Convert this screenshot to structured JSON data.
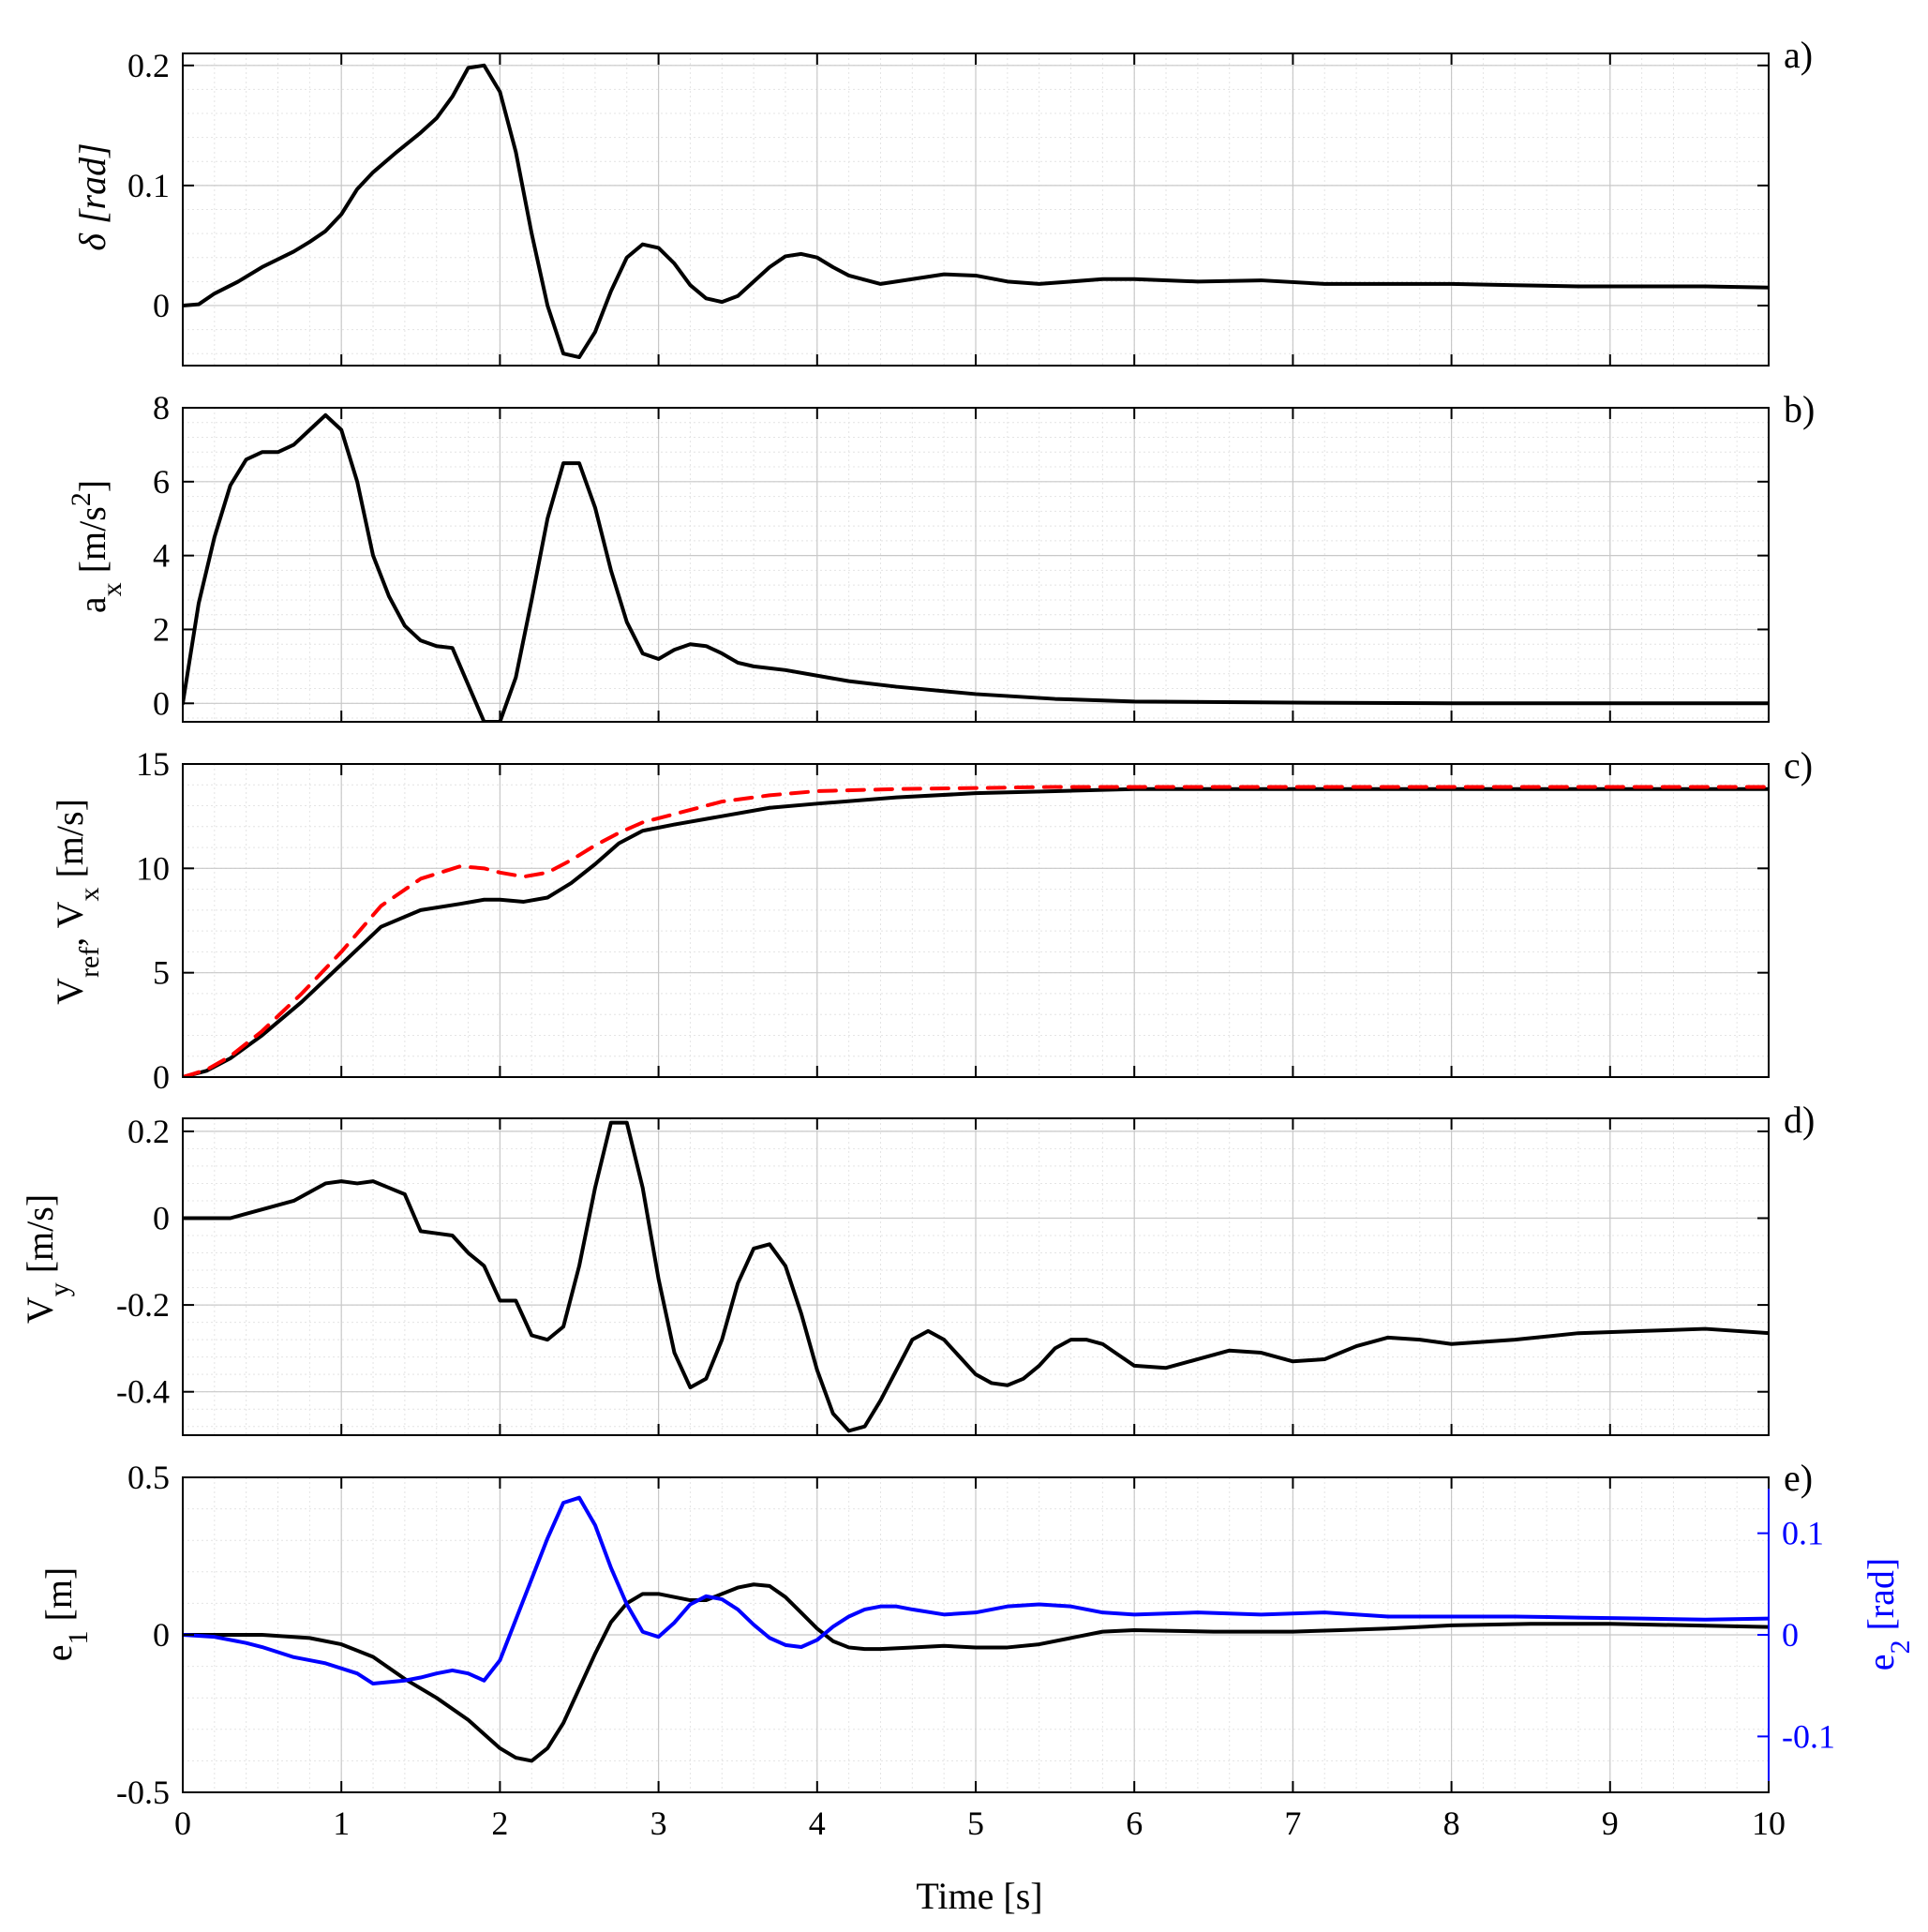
{
  "chart_data": [
    {
      "type": "line",
      "panel_label": "a)",
      "ylabel": "δ [rad]",
      "xlabel": "",
      "xlim": [
        0,
        10
      ],
      "ylim": [
        -0.05,
        0.21
      ],
      "yticks": [
        0,
        0.1,
        0.2
      ],
      "ytick_labels": [
        "0",
        "0.1",
        "0.2"
      ],
      "xticks": [
        0,
        1,
        2,
        3,
        4,
        5,
        6,
        7,
        8,
        9,
        10
      ],
      "grid": true,
      "series": [
        {
          "name": "delta",
          "color": "#000000",
          "dash": false,
          "x": [
            0,
            0.1,
            0.2,
            0.35,
            0.5,
            0.7,
            0.8,
            0.9,
            1.0,
            1.1,
            1.2,
            1.35,
            1.5,
            1.6,
            1.7,
            1.8,
            1.9,
            2.0,
            2.1,
            2.2,
            2.3,
            2.4,
            2.5,
            2.6,
            2.7,
            2.8,
            2.9,
            3.0,
            3.1,
            3.2,
            3.3,
            3.4,
            3.5,
            3.6,
            3.7,
            3.8,
            3.9,
            4.0,
            4.1,
            4.2,
            4.4,
            4.6,
            4.8,
            5.0,
            5.2,
            5.4,
            5.6,
            5.8,
            6.0,
            6.4,
            6.8,
            7.2,
            7.6,
            8.0,
            8.4,
            8.8,
            9.2,
            9.6,
            10.0
          ],
          "values": [
            0,
            0.001,
            0.01,
            0.02,
            0.032,
            0.045,
            0.053,
            0.062,
            0.076,
            0.097,
            0.111,
            0.128,
            0.144,
            0.156,
            0.174,
            0.198,
            0.2,
            0.178,
            0.128,
            0.06,
            0.0,
            -0.04,
            -0.043,
            -0.022,
            0.012,
            0.04,
            0.051,
            0.048,
            0.035,
            0.017,
            0.006,
            0.003,
            0.008,
            0.02,
            0.032,
            0.041,
            0.043,
            0.04,
            0.032,
            0.025,
            0.018,
            0.022,
            0.026,
            0.025,
            0.02,
            0.018,
            0.02,
            0.022,
            0.022,
            0.02,
            0.021,
            0.018,
            0.018,
            0.018,
            0.017,
            0.016,
            0.016,
            0.016,
            0.015
          ]
        }
      ]
    },
    {
      "type": "line",
      "panel_label": "b)",
      "ylabel": "a",
      "ylabel_sub": "x",
      "ylabel_tail": " [m/s",
      "ylabel_sup": "2",
      "ylabel_end": "]",
      "xlabel": "",
      "xlim": [
        0,
        10
      ],
      "ylim": [
        -0.5,
        8.0
      ],
      "yticks": [
        0,
        2,
        4,
        6,
        8
      ],
      "ytick_labels": [
        "0",
        "2",
        "4",
        "6",
        "8"
      ],
      "xticks": [
        0,
        1,
        2,
        3,
        4,
        5,
        6,
        7,
        8,
        9,
        10
      ],
      "grid": true,
      "series": [
        {
          "name": "ax",
          "color": "#000000",
          "dash": false,
          "x": [
            0,
            0.1,
            0.2,
            0.3,
            0.4,
            0.5,
            0.6,
            0.7,
            0.8,
            0.9,
            1.0,
            1.1,
            1.2,
            1.3,
            1.4,
            1.5,
            1.6,
            1.7,
            1.8,
            1.9,
            2.0,
            2.1,
            2.2,
            2.3,
            2.4,
            2.5,
            2.6,
            2.7,
            2.8,
            2.9,
            3.0,
            3.1,
            3.2,
            3.3,
            3.4,
            3.5,
            3.6,
            3.8,
            4.0,
            4.2,
            4.5,
            5.0,
            5.5,
            6.0,
            7.0,
            8.0,
            10.0
          ],
          "values": [
            0,
            2.7,
            4.5,
            5.9,
            6.6,
            6.8,
            6.8,
            7.0,
            7.4,
            7.8,
            7.4,
            6.0,
            4.0,
            2.9,
            2.1,
            1.7,
            1.55,
            1.5,
            0.5,
            -0.5,
            -0.5,
            0.7,
            2.8,
            5.0,
            6.5,
            6.5,
            5.3,
            3.6,
            2.2,
            1.35,
            1.2,
            1.45,
            1.6,
            1.55,
            1.35,
            1.1,
            1.0,
            0.9,
            0.75,
            0.6,
            0.45,
            0.25,
            0.12,
            0.05,
            0.02,
            0.0,
            0.0
          ]
        }
      ]
    },
    {
      "type": "line",
      "panel_label": "c)",
      "ylabel": "V",
      "ylabel_sub": "ref",
      "ylabel_tail": ", V",
      "ylabel_sub2": "x",
      "ylabel_end": " [m/s]",
      "xlabel": "",
      "xlim": [
        0,
        10
      ],
      "ylim": [
        0,
        15
      ],
      "yticks": [
        0,
        5,
        10,
        15
      ],
      "ytick_labels": [
        "0",
        "5",
        "10",
        "15"
      ],
      "xticks": [
        0,
        1,
        2,
        3,
        4,
        5,
        6,
        7,
        8,
        9,
        10
      ],
      "grid": true,
      "series": [
        {
          "name": "Vx",
          "color": "#000000",
          "dash": false,
          "x": [
            0,
            0.15,
            0.3,
            0.5,
            0.75,
            1.0,
            1.25,
            1.5,
            1.75,
            1.9,
            2.0,
            2.15,
            2.3,
            2.45,
            2.6,
            2.75,
            2.9,
            3.1,
            3.4,
            3.7,
            4.0,
            4.5,
            5.0,
            5.5,
            6.0,
            7.0,
            8.0,
            10.0
          ],
          "values": [
            0,
            0.3,
            0.9,
            2.0,
            3.6,
            5.4,
            7.2,
            8.0,
            8.3,
            8.5,
            8.5,
            8.4,
            8.6,
            9.3,
            10.2,
            11.2,
            11.8,
            12.1,
            12.5,
            12.9,
            13.1,
            13.4,
            13.6,
            13.7,
            13.8,
            13.8,
            13.8,
            13.8
          ]
        },
        {
          "name": "Vref",
          "color": "#ff0000",
          "dash": true,
          "x": [
            0,
            0.15,
            0.3,
            0.5,
            0.75,
            1.0,
            1.25,
            1.5,
            1.75,
            1.9,
            2.0,
            2.15,
            2.3,
            2.45,
            2.6,
            2.75,
            2.9,
            3.1,
            3.4,
            3.7,
            4.0,
            4.5,
            5.0,
            5.5,
            6.0,
            7.0,
            8.0,
            10.0
          ],
          "values": [
            0,
            0.35,
            1.0,
            2.2,
            4.0,
            6.0,
            8.2,
            9.5,
            10.1,
            10.0,
            9.8,
            9.6,
            9.8,
            10.4,
            11.1,
            11.7,
            12.2,
            12.6,
            13.2,
            13.5,
            13.7,
            13.8,
            13.85,
            13.9,
            13.9,
            13.9,
            13.9,
            13.9
          ]
        }
      ]
    },
    {
      "type": "line",
      "panel_label": "d)",
      "ylabel": "V",
      "ylabel_sub": "y",
      "ylabel_end": " [m/s]",
      "xlabel": "",
      "xlim": [
        0,
        10
      ],
      "ylim": [
        -0.5,
        0.23
      ],
      "yticks": [
        -0.4,
        -0.2,
        0,
        0.2
      ],
      "ytick_labels": [
        "-0.4",
        "-0.2",
        "0",
        "0.2"
      ],
      "xticks": [
        0,
        1,
        2,
        3,
        4,
        5,
        6,
        7,
        8,
        9,
        10
      ],
      "grid": true,
      "series": [
        {
          "name": "Vy",
          "color": "#000000",
          "dash": false,
          "x": [
            0,
            0.3,
            0.5,
            0.7,
            0.8,
            0.9,
            1.0,
            1.1,
            1.2,
            1.3,
            1.4,
            1.5,
            1.6,
            1.7,
            1.8,
            1.9,
            2.0,
            2.1,
            2.2,
            2.3,
            2.4,
            2.5,
            2.6,
            2.7,
            2.8,
            2.9,
            3.0,
            3.1,
            3.2,
            3.3,
            3.4,
            3.5,
            3.6,
            3.7,
            3.8,
            3.9,
            4.0,
            4.1,
            4.2,
            4.3,
            4.4,
            4.5,
            4.6,
            4.7,
            4.8,
            4.9,
            5.0,
            5.1,
            5.2,
            5.3,
            5.4,
            5.5,
            5.6,
            5.7,
            5.8,
            5.9,
            6.0,
            6.2,
            6.4,
            6.6,
            6.8,
            7.0,
            7.2,
            7.4,
            7.6,
            7.8,
            8.0,
            8.4,
            8.8,
            9.2,
            9.6,
            10.0
          ],
          "values": [
            0,
            0.0,
            0.02,
            0.04,
            0.06,
            0.08,
            0.085,
            0.08,
            0.085,
            0.07,
            0.055,
            -0.03,
            -0.035,
            -0.04,
            -0.08,
            -0.11,
            -0.19,
            -0.19,
            -0.27,
            -0.28,
            -0.25,
            -0.11,
            0.07,
            0.22,
            0.22,
            0.07,
            -0.14,
            -0.31,
            -0.39,
            -0.37,
            -0.28,
            -0.15,
            -0.07,
            -0.06,
            -0.11,
            -0.22,
            -0.35,
            -0.45,
            -0.49,
            -0.48,
            -0.42,
            -0.35,
            -0.28,
            -0.26,
            -0.28,
            -0.32,
            -0.36,
            -0.38,
            -0.385,
            -0.37,
            -0.34,
            -0.3,
            -0.28,
            -0.28,
            -0.29,
            -0.315,
            -0.34,
            -0.345,
            -0.325,
            -0.305,
            -0.31,
            -0.33,
            -0.325,
            -0.295,
            -0.275,
            -0.28,
            -0.29,
            -0.28,
            -0.265,
            -0.26,
            -0.255,
            -0.265
          ]
        }
      ]
    },
    {
      "type": "line",
      "panel_label": "e)",
      "ylabel": "e",
      "ylabel_sub": "1",
      "ylabel_end": " [m]",
      "y2label": "e",
      "y2label_sub": "2",
      "y2label_end": " [rad]",
      "y2color": "#0000ff",
      "xlabel": "Time [s]",
      "xlim": [
        0,
        10
      ],
      "ylim": [
        -0.5,
        0.5
      ],
      "yticks": [
        -0.5,
        0,
        0.5
      ],
      "ytick_labels": [
        "-0.5",
        "0",
        "0.5"
      ],
      "y2lim": [
        -0.155,
        0.155
      ],
      "y2ticks": [
        -0.1,
        0,
        0.1
      ],
      "y2tick_labels": [
        "-0.1",
        "0",
        "0.1"
      ],
      "xticks": [
        0,
        1,
        2,
        3,
        4,
        5,
        6,
        7,
        8,
        9,
        10
      ],
      "xtick_labels": [
        "0",
        "1",
        "2",
        "3",
        "4",
        "5",
        "6",
        "7",
        "8",
        "9",
        "10"
      ],
      "grid": true,
      "series": [
        {
          "name": "e1",
          "axis": "left",
          "color": "#000000",
          "dash": false,
          "x": [
            0,
            0.5,
            0.8,
            1.0,
            1.2,
            1.4,
            1.6,
            1.8,
            2.0,
            2.1,
            2.2,
            2.3,
            2.4,
            2.5,
            2.6,
            2.7,
            2.8,
            2.9,
            3.0,
            3.1,
            3.2,
            3.3,
            3.4,
            3.5,
            3.6,
            3.7,
            3.8,
            3.9,
            4.0,
            4.1,
            4.2,
            4.3,
            4.4,
            4.6,
            4.8,
            5.0,
            5.2,
            5.4,
            5.6,
            5.8,
            6.0,
            6.5,
            7.0,
            7.3,
            7.6,
            8.0,
            8.5,
            9.0,
            9.5,
            10.0
          ],
          "values": [
            0,
            0.0,
            -0.01,
            -0.03,
            -0.07,
            -0.14,
            -0.2,
            -0.27,
            -0.36,
            -0.39,
            -0.4,
            -0.36,
            -0.28,
            -0.17,
            -0.06,
            0.04,
            0.1,
            0.13,
            0.13,
            0.12,
            0.11,
            0.11,
            0.13,
            0.15,
            0.16,
            0.155,
            0.12,
            0.07,
            0.02,
            -0.02,
            -0.04,
            -0.045,
            -0.045,
            -0.04,
            -0.035,
            -0.04,
            -0.04,
            -0.03,
            -0.01,
            0.01,
            0.015,
            0.01,
            0.01,
            0.015,
            0.02,
            0.03,
            0.035,
            0.035,
            0.03,
            0.025
          ]
        },
        {
          "name": "e2",
          "axis": "right",
          "color": "#0000ff",
          "dash": false,
          "x": [
            0,
            0.2,
            0.4,
            0.5,
            0.7,
            0.9,
            1.1,
            1.2,
            1.4,
            1.5,
            1.6,
            1.7,
            1.8,
            1.9,
            2.0,
            2.1,
            2.2,
            2.3,
            2.4,
            2.5,
            2.6,
            2.7,
            2.8,
            2.9,
            3.0,
            3.1,
            3.2,
            3.3,
            3.4,
            3.5,
            3.6,
            3.7,
            3.8,
            3.9,
            4.0,
            4.1,
            4.2,
            4.3,
            4.4,
            4.5,
            4.6,
            4.8,
            5.0,
            5.2,
            5.4,
            5.6,
            5.8,
            6.0,
            6.4,
            6.8,
            7.2,
            7.6,
            8.0,
            8.4,
            8.8,
            9.2,
            9.6,
            10.0
          ],
          "values": [
            0,
            -0.002,
            -0.008,
            -0.012,
            -0.022,
            -0.028,
            -0.038,
            -0.048,
            -0.045,
            -0.042,
            -0.038,
            -0.035,
            -0.038,
            -0.045,
            -0.025,
            0.015,
            0.055,
            0.095,
            0.13,
            0.135,
            0.108,
            0.066,
            0.03,
            0.003,
            -0.002,
            0.012,
            0.03,
            0.038,
            0.035,
            0.025,
            0.01,
            -0.003,
            -0.01,
            -0.012,
            -0.005,
            0.008,
            0.018,
            0.025,
            0.028,
            0.028,
            0.025,
            0.02,
            0.022,
            0.028,
            0.03,
            0.028,
            0.022,
            0.02,
            0.022,
            0.02,
            0.022,
            0.018,
            0.018,
            0.018,
            0.017,
            0.016,
            0.015,
            0.016
          ]
        }
      ]
    }
  ]
}
